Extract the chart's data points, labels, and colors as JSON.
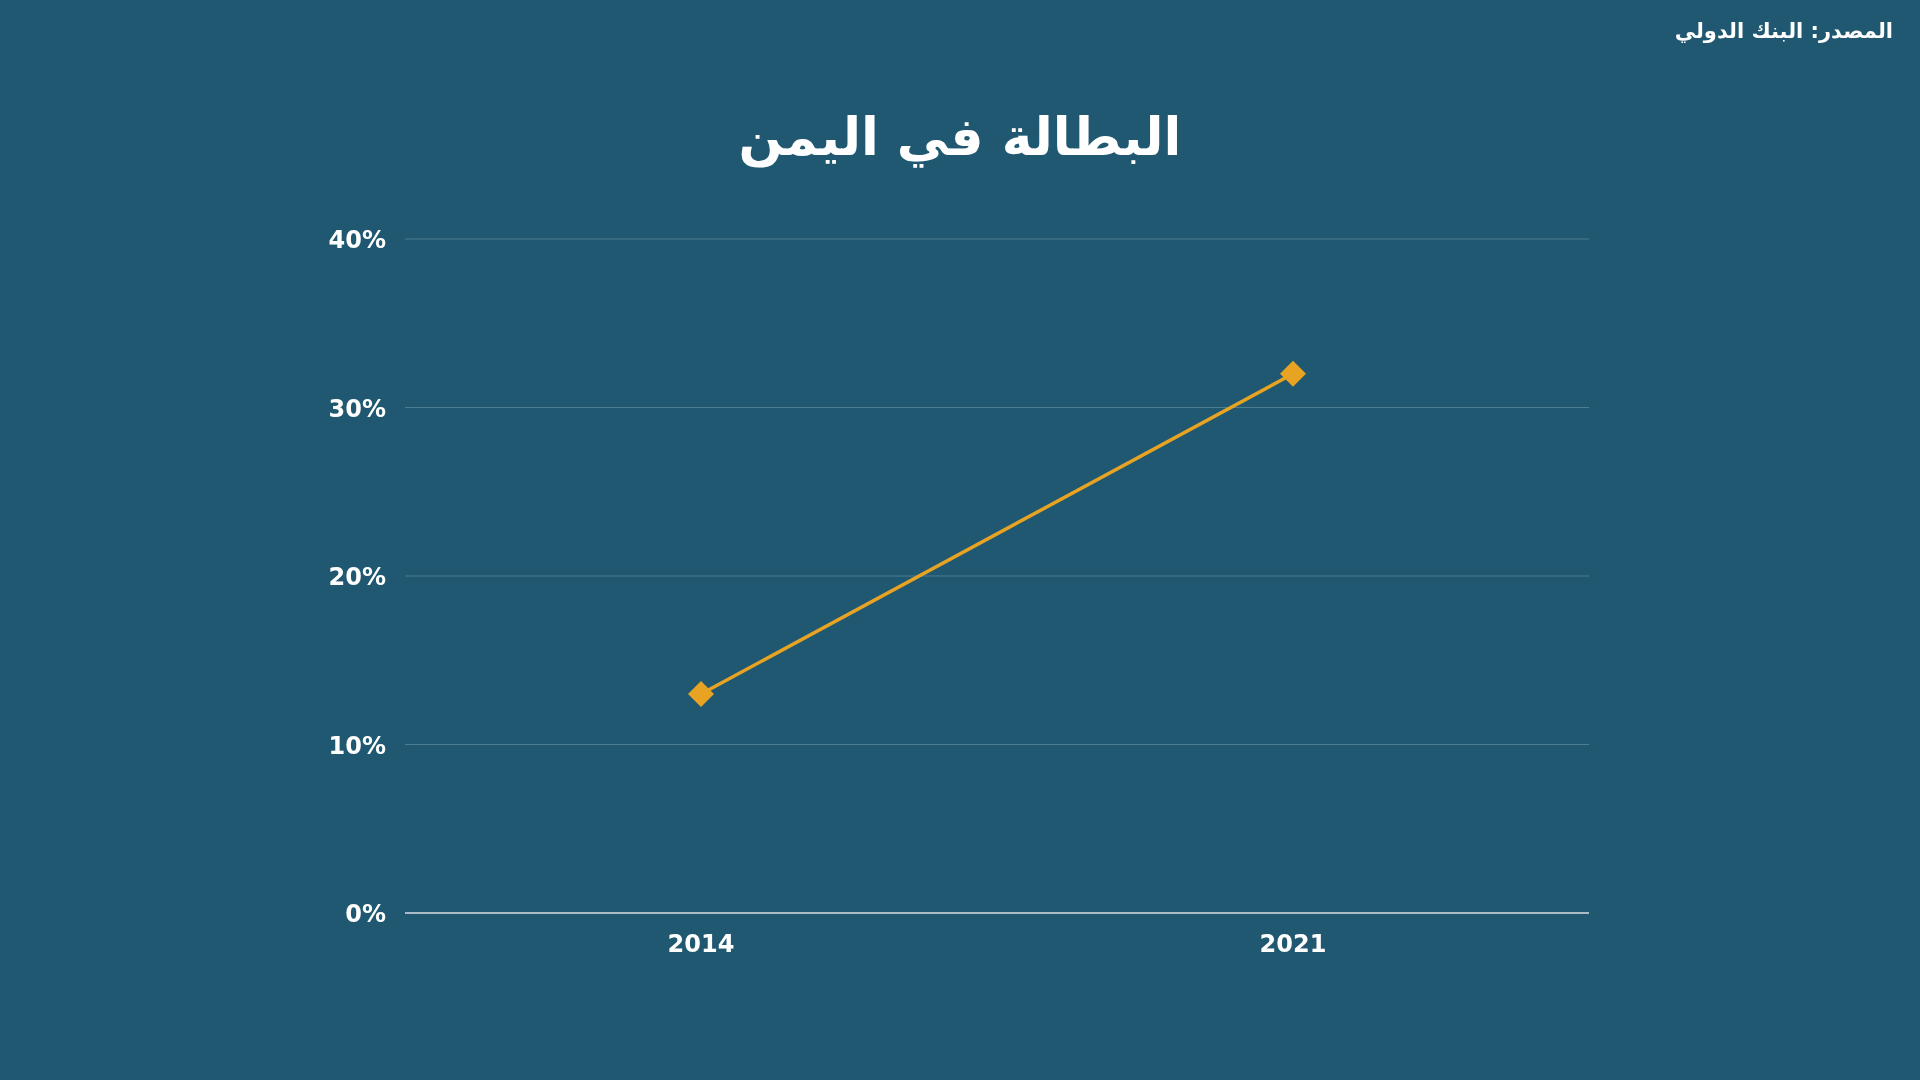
{
  "chart_data": {
    "type": "line",
    "title": "البطالة في اليمن",
    "categories": [
      "2014",
      "2021"
    ],
    "series": [
      {
        "color": "#e8a323",
        "values": [
          13,
          32
        ]
      }
    ],
    "ylim": [
      0,
      40
    ],
    "yticks": [
      {
        "value": 0,
        "label": "0%"
      },
      {
        "value": 10,
        "label": "10%"
      },
      {
        "value": 20,
        "label": "20%"
      },
      {
        "value": 30,
        "label": "30%"
      },
      {
        "value": 40,
        "label": "40%"
      }
    ],
    "grid": "y",
    "marker": "diamond",
    "line_style": "solid",
    "annotations": [
      "المصدر: البنك الدولي"
    ]
  }
}
